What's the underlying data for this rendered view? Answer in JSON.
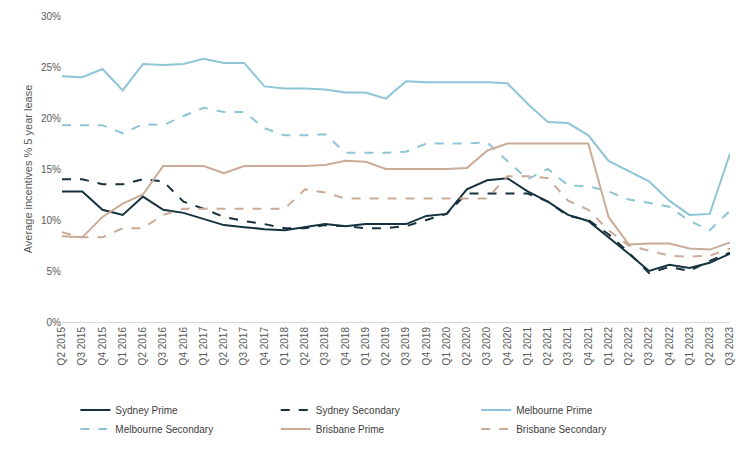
{
  "chart_data": {
    "type": "line",
    "y_label": "Average incentives % 5 year lease",
    "categories": [
      "Q2 2015",
      "Q3 2015",
      "Q4 2015",
      "Q1 2016",
      "Q2 2016",
      "Q3 2016",
      "Q4 2016",
      "Q1 2017",
      "Q2 2017",
      "Q3 2017",
      "Q4 2017",
      "Q1 2018",
      "Q2 2018",
      "Q3 2018",
      "Q4 2018",
      "Q1 2019",
      "Q2 2019",
      "Q3 2019",
      "Q4 2019",
      "Q1 2020",
      "Q2 2020",
      "Q3 2020",
      "Q4 2020",
      "Q1 2021",
      "Q2 2021",
      "Q3 2021",
      "Q4 2021",
      "Q1 2022",
      "Q2 2022",
      "Q3 2022",
      "Q4 2022",
      "Q1 2023",
      "Q2 2023",
      "Q3 2023"
    ],
    "series": [
      {
        "name": "Sydney Prime",
        "color": "#17323f",
        "line_style": "solid",
        "values": [
          12.8,
          12.8,
          11.0,
          10.5,
          12.3,
          11.0,
          10.7,
          10.1,
          9.5,
          9.3,
          9.1,
          9.0,
          9.3,
          9.6,
          9.4,
          9.6,
          9.6,
          9.6,
          10.4,
          10.6,
          13.0,
          13.9,
          14.1,
          12.8,
          11.8,
          10.5,
          9.9,
          8.3,
          6.7,
          5.0,
          5.6,
          5.3,
          5.8,
          6.7
        ]
      },
      {
        "name": "Sydney Secondary",
        "color": "#17323f",
        "line_style": "dash",
        "values": [
          14.0,
          14.0,
          13.5,
          13.5,
          14.0,
          13.8,
          11.8,
          11.1,
          10.3,
          9.9,
          9.6,
          9.2,
          9.2,
          9.5,
          9.4,
          9.2,
          9.2,
          9.4,
          10.0,
          10.6,
          12.6,
          12.6,
          12.6,
          12.6,
          11.8,
          10.4,
          10.0,
          8.6,
          6.8,
          4.8,
          5.4,
          5.0,
          6.0,
          6.8
        ]
      },
      {
        "name": "Melbourne Prime",
        "color": "#8ec5d6",
        "line_style": "solid",
        "values": [
          24.1,
          24.0,
          24.8,
          22.7,
          25.3,
          25.2,
          25.3,
          25.8,
          25.4,
          25.4,
          23.1,
          22.9,
          22.9,
          22.8,
          22.5,
          22.5,
          21.9,
          23.6,
          23.5,
          23.5,
          23.5,
          23.5,
          23.4,
          21.4,
          19.6,
          19.5,
          18.3,
          15.8,
          14.8,
          13.8,
          11.9,
          10.5,
          10.6,
          16.5
        ]
      },
      {
        "name": "Melbourne Secondary",
        "color": "#8ec5d6",
        "line_style": "dash",
        "values": [
          19.3,
          19.3,
          19.3,
          18.5,
          19.4,
          19.3,
          20.2,
          21.0,
          20.6,
          20.6,
          19.0,
          18.3,
          18.3,
          18.4,
          16.6,
          16.6,
          16.6,
          16.7,
          17.5,
          17.5,
          17.5,
          17.6,
          15.8,
          14.0,
          15.0,
          13.4,
          13.3,
          12.8,
          12.0,
          11.7,
          11.3,
          9.9,
          9.0,
          10.9
        ]
      },
      {
        "name": "Brisbane Prime",
        "color": "#c9ab98",
        "line_style": "solid",
        "values": [
          8.4,
          8.3,
          10.3,
          11.6,
          12.5,
          15.3,
          15.3,
          15.3,
          14.6,
          15.3,
          15.3,
          15.3,
          15.3,
          15.4,
          15.8,
          15.7,
          15.0,
          15.0,
          15.0,
          15.0,
          15.1,
          16.8,
          17.5,
          17.5,
          17.5,
          17.5,
          17.5,
          10.3,
          7.6,
          7.7,
          7.7,
          7.2,
          7.1,
          7.8
        ]
      },
      {
        "name": "Brisbane Secondary",
        "color": "#c9ab98",
        "line_style": "dash",
        "values": [
          8.8,
          8.3,
          8.3,
          9.2,
          9.2,
          10.5,
          11.1,
          11.1,
          11.1,
          11.1,
          11.1,
          11.1,
          13.0,
          12.7,
          12.1,
          12.1,
          12.1,
          12.1,
          12.1,
          12.1,
          12.1,
          12.1,
          14.3,
          14.3,
          14.1,
          11.9,
          11.0,
          9.0,
          7.5,
          7.0,
          6.5,
          6.4,
          6.5,
          7.2
        ]
      }
    ],
    "ylim": [
      0,
      30
    ],
    "yticks": [
      {
        "value": 0,
        "label": "0%"
      },
      {
        "value": 5,
        "label": "5%"
      },
      {
        "value": 10,
        "label": "10%"
      },
      {
        "value": 15,
        "label": "15%"
      },
      {
        "value": 20,
        "label": "20%"
      },
      {
        "value": 25,
        "label": "25%"
      },
      {
        "value": 30,
        "label": "30%"
      }
    ],
    "grid": false,
    "legend": "bottom"
  }
}
